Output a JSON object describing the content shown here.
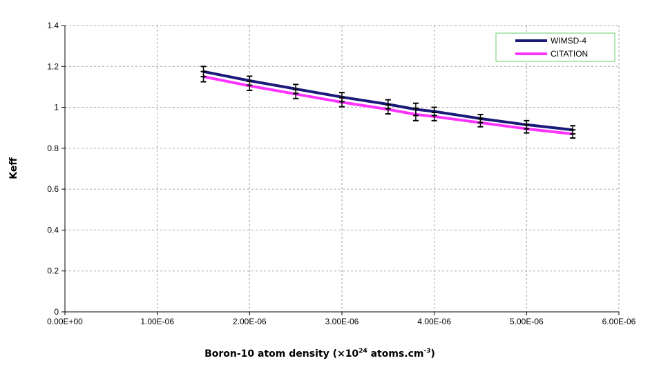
{
  "chart_data": {
    "type": "line",
    "xlabel_main": "Boron-10 atom density (×10",
    "xlabel_sup1": "24",
    "xlabel_mid": " atoms.cm",
    "xlabel_sup2": "-3",
    "xlabel_end": ")",
    "ylabel": "Keff",
    "xlim": [
      0,
      6e-06
    ],
    "ylim": [
      0,
      1.4
    ],
    "x_ticks": [
      0,
      1e-06,
      2e-06,
      3e-06,
      4e-06,
      5e-06,
      6e-06
    ],
    "x_tick_labels": [
      "0.00E+00",
      "1.00E-06",
      "2.00E-06",
      "3.00E-06",
      "4.00E-06",
      "5.00E-06",
      "6.00E-06"
    ],
    "y_ticks": [
      0,
      0.2,
      0.4,
      0.6,
      0.8,
      1.0,
      1.2,
      1.4
    ],
    "y_tick_labels": [
      "0",
      "0.2",
      "0.4",
      "0.6",
      "0.8",
      "1",
      "1.2",
      "1.4"
    ],
    "grid": true,
    "legend_position": "top-right",
    "x": [
      1.5e-06,
      2e-06,
      2.5e-06,
      3e-06,
      3.5e-06,
      3.8e-06,
      4e-06,
      4.5e-06,
      5e-06,
      5.5e-06
    ],
    "error_bars": [
      0.025,
      0.022,
      0.022,
      0.022,
      0.022,
      0.03,
      0.02,
      0.02,
      0.02,
      0.02
    ],
    "series": [
      {
        "name": "WIMSD-4",
        "color": "#1a1a78",
        "values": [
          1.175,
          1.13,
          1.09,
          1.05,
          1.015,
          0.99,
          0.98,
          0.945,
          0.915,
          0.89
        ]
      },
      {
        "name": "CITATION",
        "color": "#ff33ff",
        "values": [
          1.15,
          1.105,
          1.065,
          1.025,
          0.99,
          0.965,
          0.955,
          0.925,
          0.895,
          0.87
        ]
      }
    ]
  }
}
